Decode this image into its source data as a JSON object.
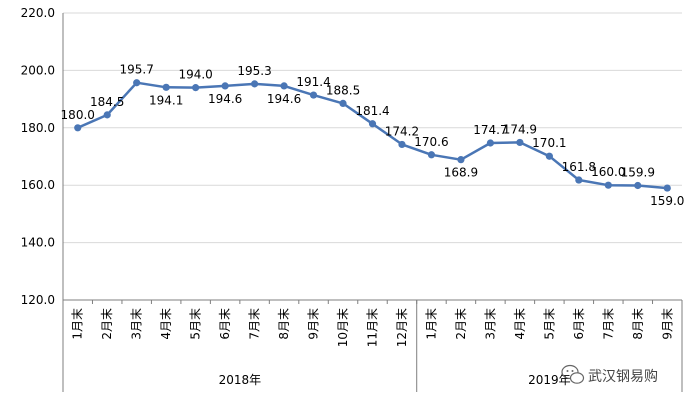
{
  "chart_data": {
    "type": "line",
    "title": "",
    "xlabel": "",
    "ylabel": "",
    "ylim": [
      120,
      220
    ],
    "y_ticks": [
      "120.0",
      "140.0",
      "160.0",
      "180.0",
      "200.0",
      "220.0"
    ],
    "grid": true,
    "legend": "none",
    "line_color": "#4a76b5",
    "groups": [
      {
        "label": "2018年",
        "categories": [
          "1月末",
          "2月末",
          "3月末",
          "4月末",
          "5月末",
          "6月末",
          "7月末",
          "8月末",
          "9月末",
          "10月末",
          "11月末",
          "12月末"
        ]
      },
      {
        "label": "2019年",
        "categories": [
          "1月末",
          "2月末",
          "3月末",
          "4月末",
          "5月末",
          "6月末",
          "7月末",
          "8月末",
          "9月末"
        ]
      }
    ],
    "values": [
      180.0,
      184.5,
      195.7,
      194.1,
      194.0,
      194.6,
      195.3,
      194.6,
      191.4,
      188.5,
      181.4,
      174.2,
      170.6,
      168.9,
      174.7,
      174.9,
      170.1,
      161.8,
      160.0,
      159.9,
      159.0
    ],
    "data_labels": [
      "180.0",
      "184.5",
      "195.7",
      "194.1",
      "194.0",
      "194.6",
      "195.3",
      "194.6",
      "191.4",
      "188.5",
      "181.4",
      "174.2",
      "170.6",
      "168.9",
      "174.7",
      "174.9",
      "170.1",
      "161.8",
      "160.0",
      "159.9",
      "159.0"
    ]
  },
  "watermark": {
    "icon": "wechat-icon",
    "text": "武汉钢易购"
  }
}
